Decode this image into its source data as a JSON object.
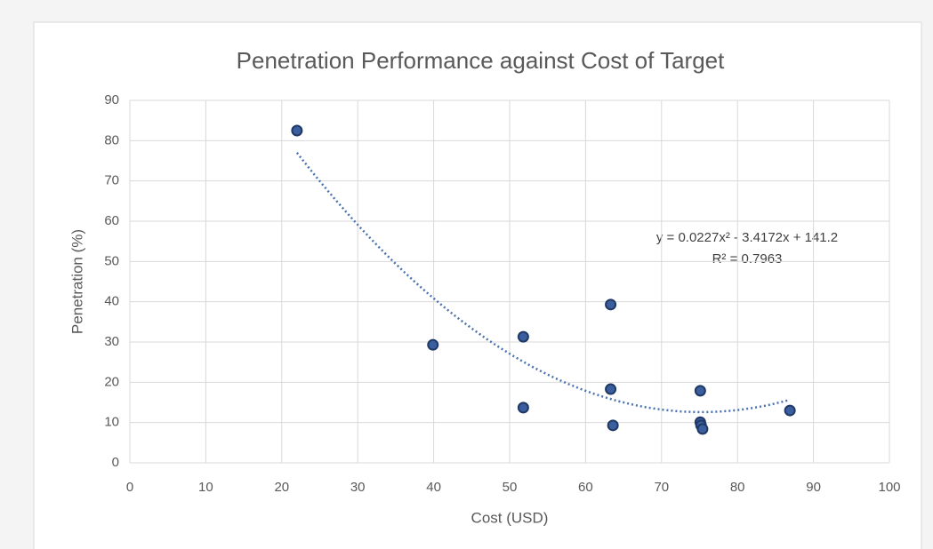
{
  "chart_data": {
    "type": "scatter",
    "title": "Penetration Performance against Cost of Target",
    "xlabel": "Cost (USD)",
    "ylabel": "Penetration (%)",
    "x": [
      22.0,
      39.9,
      51.8,
      51.8,
      63.3,
      63.3,
      63.6,
      75.1,
      75.1,
      75.2,
      75.4,
      86.9
    ],
    "y": [
      82.5,
      29.3,
      31.3,
      13.7,
      39.3,
      18.3,
      9.3,
      17.9,
      10.1,
      9.3,
      8.4,
      13.0
    ],
    "color": "#3b5f9e",
    "edgecolor": "#1f3864",
    "xlim": [
      0,
      100
    ],
    "xticks": [
      0,
      10,
      20,
      30,
      40,
      50,
      60,
      70,
      80,
      90,
      100
    ],
    "ylim": [
      0,
      90
    ],
    "yticks": [
      0,
      10,
      20,
      30,
      40,
      50,
      60,
      70,
      80,
      90
    ],
    "grid": true,
    "trendline": {
      "type": "polynomial",
      "coefficients": [
        0.0227,
        -3.4172,
        141.2
      ],
      "color": "#4a72b0",
      "equation": "y = 0.0227x² - 3.4172x + 141.2",
      "r_squared": "R² = 0.7963"
    }
  }
}
